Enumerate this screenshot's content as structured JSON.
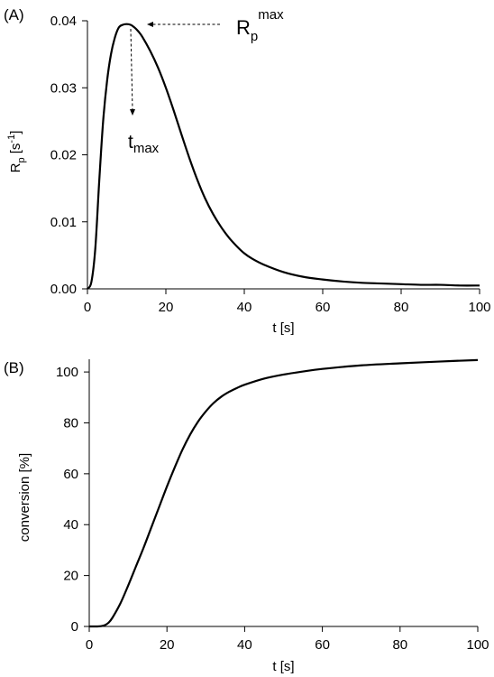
{
  "chart_data": [
    {
      "type": "line",
      "panel_label": "(A)",
      "xlabel": "t [s]",
      "ylabel": {
        "main": "R",
        "sub": "p",
        "unit_open": " [s",
        "unit_sup": "-1",
        "unit_close": "]"
      },
      "xlim": [
        0,
        100
      ],
      "ylim": [
        0,
        0.04
      ],
      "xticks": [
        0,
        20,
        40,
        60,
        80,
        100
      ],
      "xtick_labels": [
        "0",
        "20",
        "40",
        "60",
        "80",
        "100"
      ],
      "yticks": [
        0,
        0.01,
        0.02,
        0.03,
        0.04
      ],
      "ytick_labels": [
        "0.00",
        "0.01",
        "0.02",
        "0.03",
        "0.04"
      ],
      "grid": false,
      "series": [
        {
          "x": [
            0,
            1,
            2,
            3,
            4,
            5,
            6,
            7,
            8,
            9,
            10,
            11,
            12,
            13,
            14,
            16,
            18,
            20,
            22,
            24,
            26,
            28,
            30,
            32,
            34,
            36,
            38,
            40,
            42,
            45,
            50,
            55,
            60,
            65,
            70,
            75,
            80,
            85,
            90,
            95,
            100
          ],
          "y": [
            0,
            0.001,
            0.006,
            0.016,
            0.025,
            0.031,
            0.035,
            0.0375,
            0.039,
            0.0394,
            0.0395,
            0.0394,
            0.039,
            0.0384,
            0.0376,
            0.0355,
            0.033,
            0.03,
            0.0266,
            0.023,
            0.0195,
            0.0163,
            0.0135,
            0.0112,
            0.0093,
            0.0077,
            0.0064,
            0.0053,
            0.0045,
            0.0036,
            0.0025,
            0.0018,
            0.0014,
            0.0011,
            0.0009,
            0.0008,
            0.0007,
            0.0006,
            0.0006,
            0.0005,
            0.0005
          ]
        }
      ],
      "annotations": {
        "rpmax": {
          "main": "R",
          "sub": "p",
          "sup": "max",
          "x": 11,
          "y": 0.0395
        },
        "tmax": {
          "main": "t",
          "sub": "max",
          "x": 11,
          "y": 0.0395
        }
      }
    },
    {
      "type": "line",
      "panel_label": "(B)",
      "xlabel": "t [s]",
      "ylabel": "conversion [%]",
      "xlim": [
        0,
        100
      ],
      "ylim": [
        0,
        105
      ],
      "xticks": [
        0,
        20,
        40,
        60,
        80,
        100
      ],
      "xtick_labels": [
        "0",
        "20",
        "40",
        "60",
        "80",
        "100"
      ],
      "yticks": [
        0,
        20,
        40,
        60,
        80,
        100
      ],
      "ytick_labels": [
        "0",
        "20",
        "40",
        "60",
        "80",
        "100"
      ],
      "grid": false,
      "series": [
        {
          "x": [
            0,
            2,
            3,
            4,
            5,
            6,
            8,
            10,
            12,
            14,
            16,
            18,
            20,
            22,
            24,
            26,
            28,
            30,
            32,
            34,
            36,
            38,
            40,
            45,
            50,
            55,
            60,
            70,
            80,
            90,
            100
          ],
          "y": [
            0,
            0,
            0.1,
            0.5,
            1.5,
            3.5,
            9,
            16,
            23.5,
            31,
            39,
            47,
            55,
            62.5,
            69.5,
            75.5,
            80.5,
            84.5,
            87.8,
            90.3,
            92.2,
            93.7,
            95,
            97.4,
            99,
            100.2,
            101.2,
            102.6,
            103.4,
            104.1,
            104.7
          ]
        }
      ]
    }
  ]
}
